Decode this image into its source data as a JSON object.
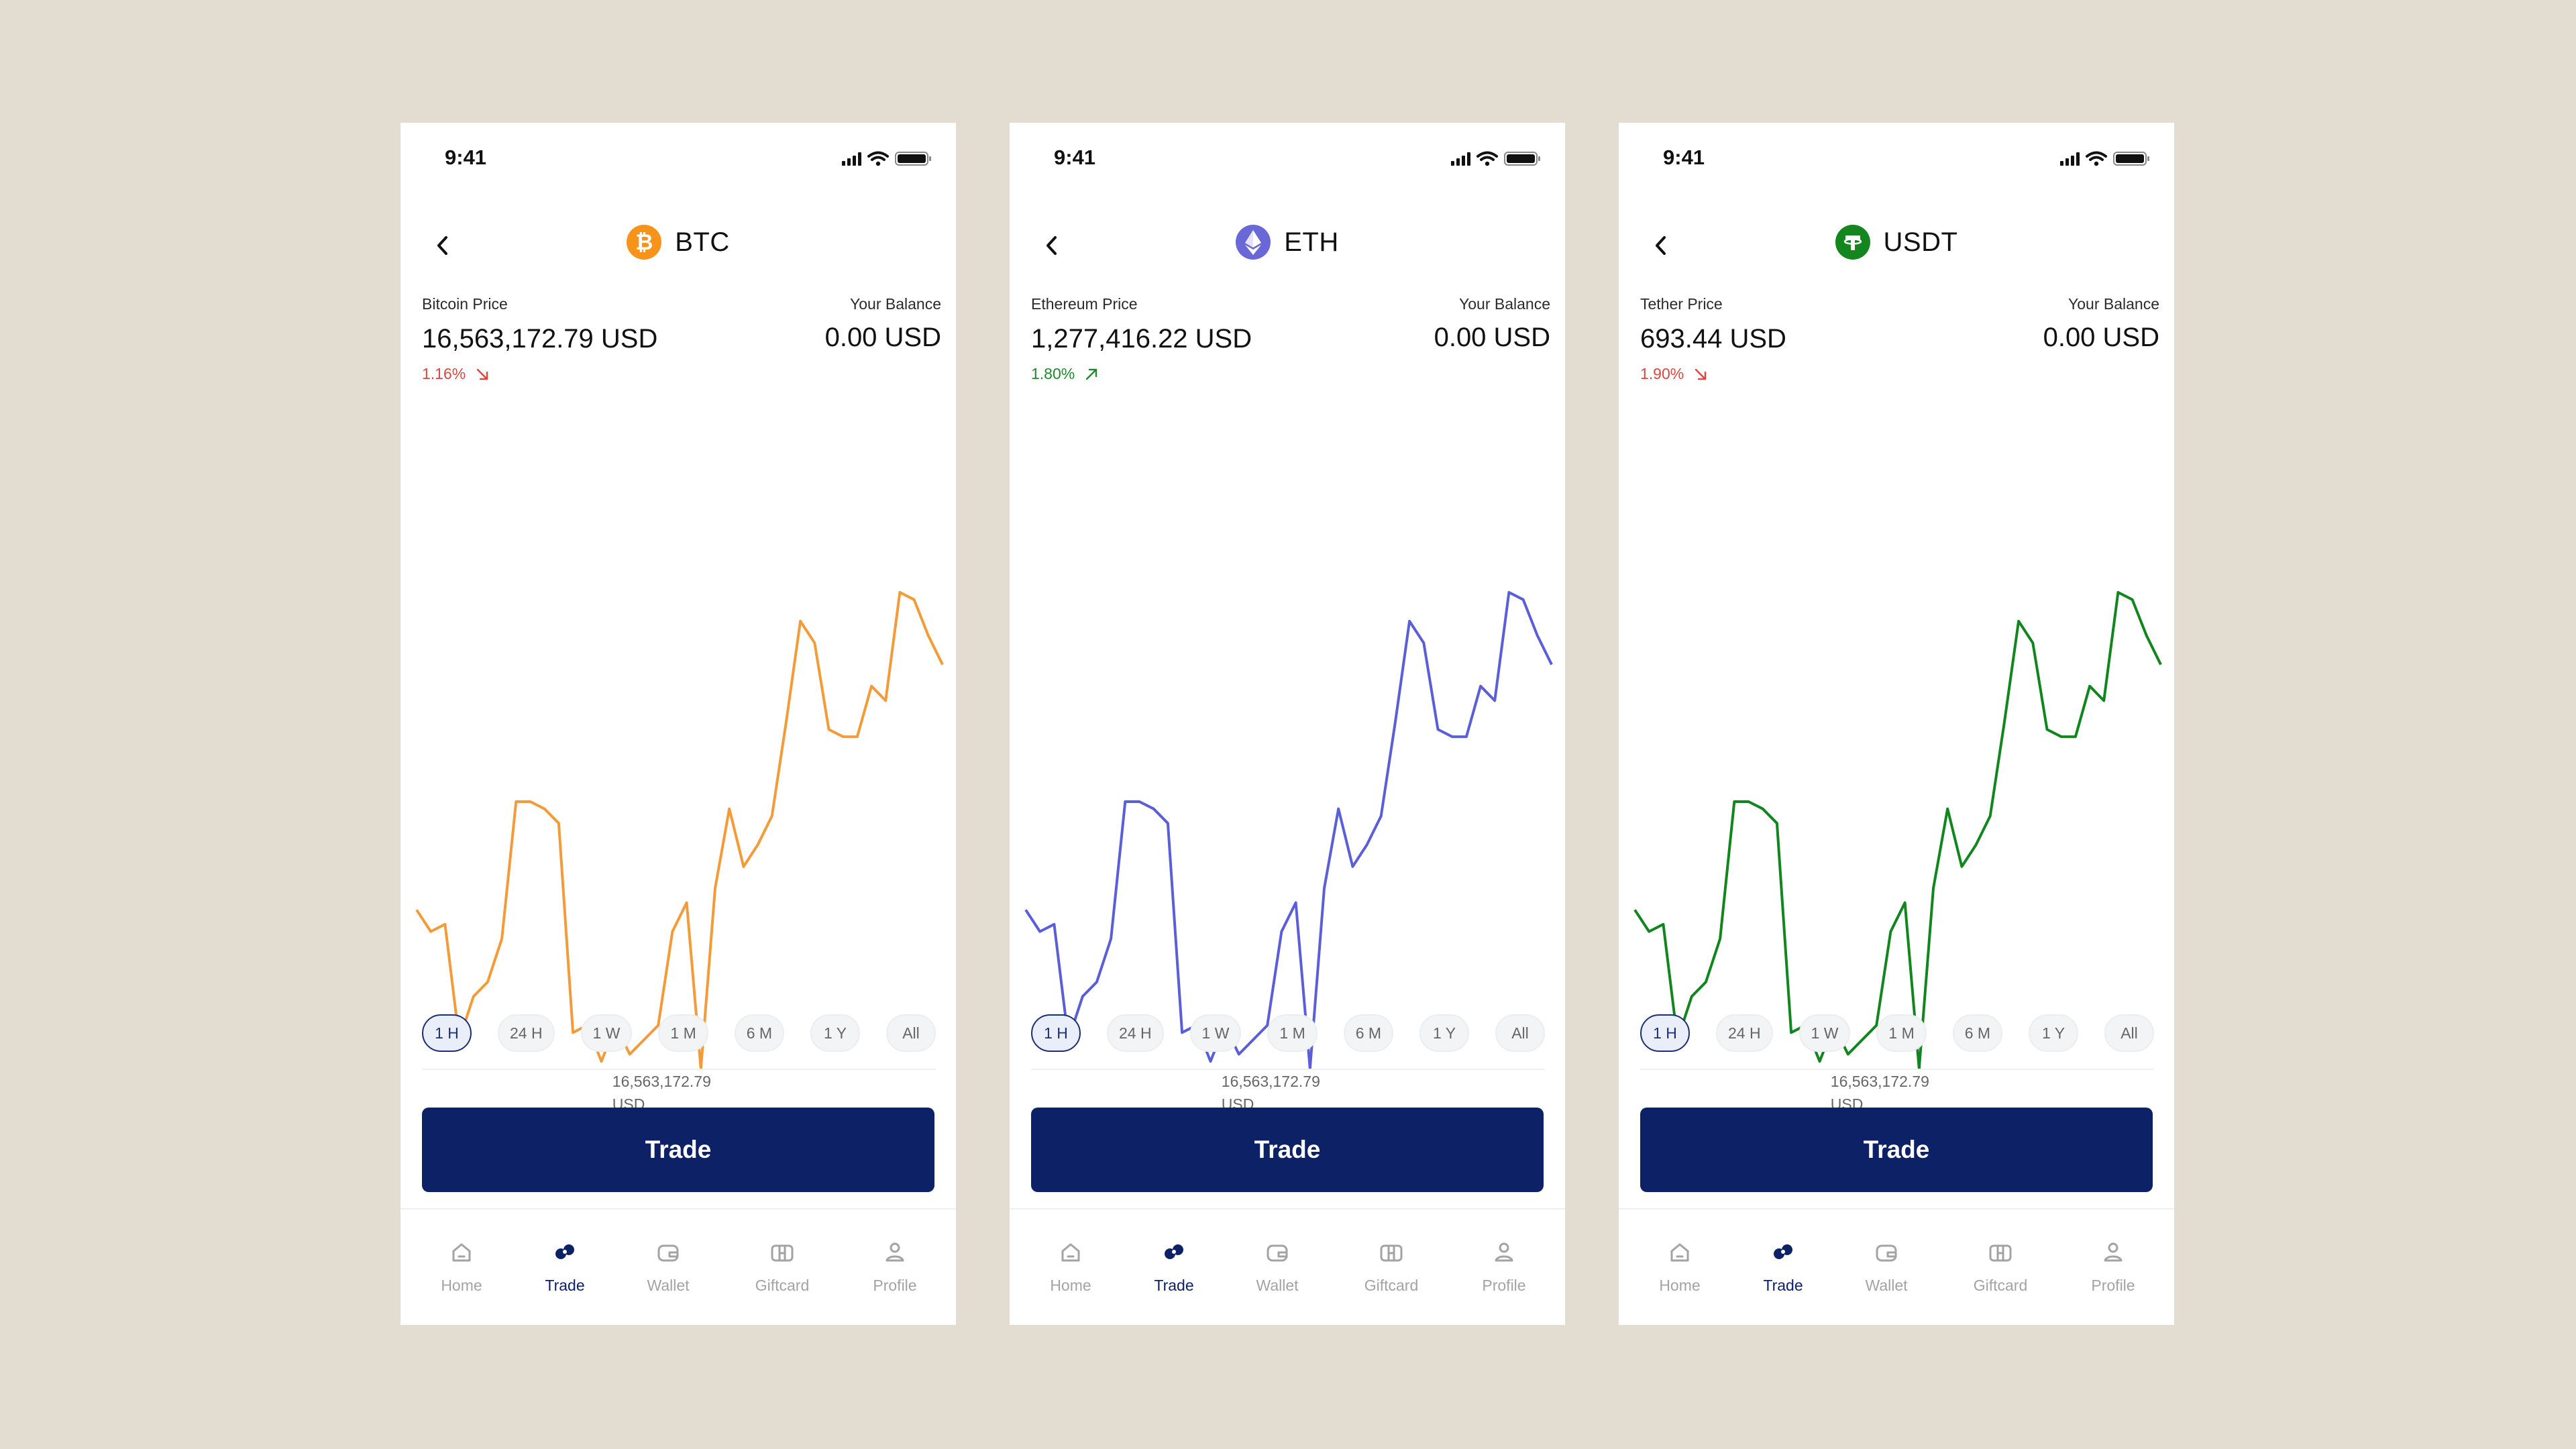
{
  "status": {
    "time": "9:41"
  },
  "colors": {
    "background": "#E3DCD1",
    "trade_button": "#0D2266",
    "negative": "#D9473F",
    "positive": "#1F8A2B",
    "btc_line": "#F39B39",
    "eth_line": "#5A5FD8",
    "usdt_line": "#12861E"
  },
  "screens": [
    {
      "symbol": "BTC",
      "logo_icon": "bitcoin-icon",
      "logo_color": "#F7931A",
      "price_label": "Bitcoin Price",
      "price": "16,563,172.79 USD",
      "change": "1.16%",
      "direction": "down",
      "balance_label": "Your Balance",
      "balance": "0.00 USD",
      "low_value": "16,563,172.79",
      "low_unit": "USD",
      "line_color": "#F39B39",
      "series": [
        57,
        54,
        55,
        39,
        45,
        47,
        53,
        72,
        72,
        71,
        69,
        40,
        41,
        36,
        41,
        37,
        39,
        41,
        54,
        58,
        35,
        60,
        71,
        63,
        66,
        70,
        83,
        97,
        94,
        82,
        81,
        81,
        88,
        86,
        101,
        100,
        95,
        91
      ]
    },
    {
      "symbol": "ETH",
      "logo_icon": "ethereum-icon",
      "logo_color": "#6A67D6",
      "price_label": "Ethereum Price",
      "price": "1,277,416.22 USD",
      "change": "1.80%",
      "direction": "up",
      "balance_label": "Your Balance",
      "balance": "0.00 USD",
      "low_value": "16,563,172.79",
      "low_unit": "USD",
      "line_color": "#5A5FD8",
      "series": [
        57,
        54,
        55,
        39,
        45,
        47,
        53,
        72,
        72,
        71,
        69,
        40,
        41,
        36,
        41,
        37,
        39,
        41,
        54,
        58,
        35,
        60,
        71,
        63,
        66,
        70,
        83,
        97,
        94,
        82,
        81,
        81,
        88,
        86,
        101,
        100,
        95,
        91
      ]
    },
    {
      "symbol": "USDT",
      "logo_icon": "tether-icon",
      "logo_color": "#14861E",
      "price_label": "Tether Price",
      "price": "693.44 USD",
      "change": "1.90%",
      "direction": "down",
      "balance_label": "Your Balance",
      "balance": "0.00 USD",
      "low_value": "16,563,172.79",
      "low_unit": "USD",
      "line_color": "#12861E",
      "series": [
        57,
        54,
        55,
        39,
        45,
        47,
        53,
        72,
        72,
        71,
        69,
        40,
        41,
        36,
        41,
        37,
        39,
        41,
        54,
        58,
        35,
        60,
        71,
        63,
        66,
        70,
        83,
        97,
        94,
        82,
        81,
        81,
        88,
        86,
        101,
        100,
        95,
        91
      ]
    }
  ],
  "ranges": [
    "1 H",
    "24 H",
    "1 W",
    "1 M",
    "6 M",
    "1 Y",
    "All"
  ],
  "active_range": "1 H",
  "trade_label": "Trade",
  "tabs": [
    {
      "label": "Home",
      "icon": "home-icon"
    },
    {
      "label": "Trade",
      "icon": "trade-icon"
    },
    {
      "label": "Wallet",
      "icon": "wallet-icon"
    },
    {
      "label": "Giftcard",
      "icon": "giftcard-icon"
    },
    {
      "label": "Profile",
      "icon": "profile-icon"
    }
  ],
  "active_tab": "Trade"
}
